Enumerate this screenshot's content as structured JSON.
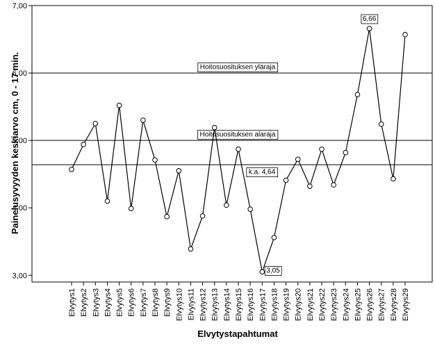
{
  "chart_data": {
    "type": "line",
    "xlabel": "Elvytystapahtumat",
    "ylabel": "Painelusyvyyden keskiarvo cm, 0 - 17 min.",
    "ylim": [
      2.9,
      7.0
    ],
    "yticks": [
      "3,00",
      "4,00",
      "5,00",
      "6,00",
      "7,00"
    ],
    "ytick_values": [
      3,
      4,
      5,
      6,
      7
    ],
    "grid": false,
    "categories": [
      "Elvytys1",
      "Elvytys2",
      "Elvytys3",
      "Elvytys4",
      "Elvytys5",
      "Elvytys6",
      "Elvytys7",
      "Elvytys8",
      "Elvytys9",
      "Elvytys10",
      "Elvytys11",
      "Elvytys12",
      "Elvytys13",
      "Elvytys14",
      "Elvytys15",
      "Elvytys16",
      "Elvytys17",
      "Elvytys18",
      "Elvytys19",
      "Elvytys20",
      "Elvytys21",
      "Elvytys22",
      "Elvytys23",
      "Elvytys24",
      "Elvytys25",
      "Elvytys26",
      "Elvytys27",
      "Elvytys28",
      "Elvytys29"
    ],
    "series": [
      {
        "values": [
          4.57,
          4.94,
          5.25,
          4.1,
          5.52,
          3.99,
          5.3,
          4.71,
          3.87,
          4.55,
          3.39,
          3.88,
          5.19,
          4.04,
          4.87,
          3.98,
          3.05,
          3.56,
          4.41,
          4.72,
          4.32,
          4.87,
          4.34,
          4.82,
          5.68,
          6.66,
          5.24,
          4.43,
          6.57
        ]
      }
    ],
    "reference_lines": [
      {
        "value": 6.0,
        "label": "Hoitosuosituksen yläraja"
      },
      {
        "value": 5.0,
        "label": "Hoitosuosituksen alaraja"
      },
      {
        "value": 4.64,
        "label": "k.a. 4,64"
      }
    ],
    "data_labels": [
      {
        "index": 25,
        "text": "6,66"
      },
      {
        "index": 16,
        "text": "3,05"
      }
    ],
    "colors": {
      "line": "#000000",
      "marker_fill": "#ffffff",
      "background": "#ffffff"
    }
  }
}
